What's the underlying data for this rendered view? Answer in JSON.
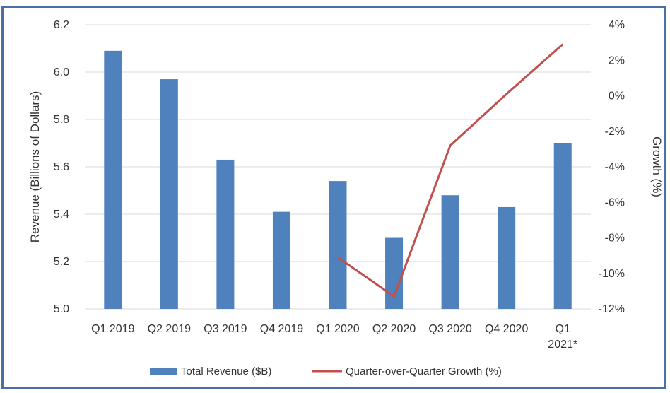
{
  "chart_data": {
    "type": "bar",
    "categories": [
      "Q1 2019",
      "Q2 2019",
      "Q3 2019",
      "Q4 2019",
      "Q1 2020",
      "Q2 2020",
      "Q3 2020",
      "Q4 2020",
      "Q1\n2021*"
    ],
    "series": [
      {
        "name": "Total Revenue ($B)",
        "type": "bar",
        "axis": "left",
        "values": [
          6.09,
          5.97,
          5.63,
          5.41,
          5.54,
          5.3,
          5.48,
          5.43,
          5.7
        ],
        "color": "#4f81bd"
      },
      {
        "name": "Quarter-over-Quarter Growth (%)",
        "type": "line",
        "axis": "right",
        "values": [
          null,
          null,
          null,
          null,
          -9.1,
          -11.3,
          -2.8,
          0.1,
          2.9
        ],
        "color": "#c0504d"
      }
    ],
    "ylabel": "Revenue (Billions of Dollars)",
    "y2label": "Growth (%)",
    "ylim": [
      5.0,
      6.2
    ],
    "y2lim": [
      -12,
      4
    ],
    "yticks": [
      "5.0",
      "5.2",
      "5.4",
      "5.6",
      "5.8",
      "6.0",
      "6.2"
    ],
    "y2ticks": [
      "-12%",
      "-10%",
      "-8%",
      "-6%",
      "-4%",
      "-2%",
      "0%",
      "2%",
      "4%"
    ],
    "grid": true,
    "legend": "bottom"
  }
}
